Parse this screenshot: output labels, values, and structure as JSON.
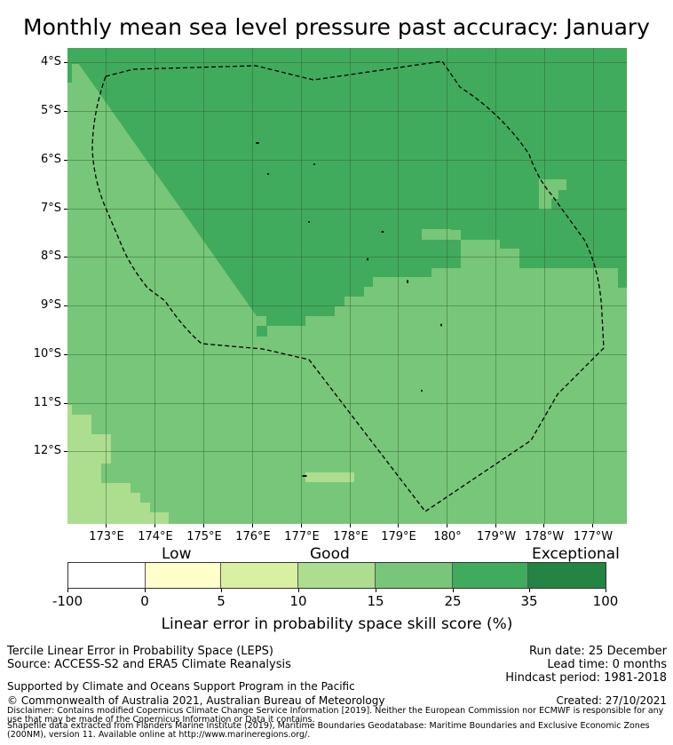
{
  "title": "Monthly mean sea level pressure past accuracy: January",
  "map": {
    "lat_labels": [
      "4°S",
      "5°S",
      "6°S",
      "7°S",
      "8°S",
      "9°S",
      "10°S",
      "11°S",
      "12°S"
    ],
    "lon_labels": [
      "173°E",
      "174°E",
      "175°E",
      "176°E",
      "177°E",
      "178°E",
      "179°E",
      "180°",
      "179°W",
      "178°W",
      "177°W"
    ],
    "colors": {
      "c25": "#78c679",
      "c35": "#41ab5d",
      "c15": "#addd8e",
      "outline": "#000000"
    }
  },
  "legend": {
    "categories": [
      "Low",
      "Good",
      "Exceptional"
    ],
    "ticks": [
      "-100",
      "0",
      "5",
      "10",
      "15",
      "25",
      "35",
      "100"
    ],
    "colors": [
      "#ffffff",
      "#ffffcc",
      "#d9f0a3",
      "#addd8e",
      "#78c679",
      "#41ab5d",
      "#238443"
    ],
    "label": "Linear error in probability space skill score (%)"
  },
  "footer": {
    "line1": "Tercile Linear Error in Probability Space (LEPS)",
    "line2": "Source: ACCESS-S2 and ERA5 Climate Reanalysis",
    "run_date": "Run date: 25 December",
    "lead_time": "Lead time: 0 months",
    "hindcast": "Hindcast period: 1981-2018",
    "support": "Supported by Climate and Oceans Support Program in the Pacific",
    "copyright": "© Commonwealth of Australia 2021, Australian Bureau of Meteorology",
    "created": "Created: 27/10/2021",
    "disclaimer": "Disclaimer: Contains modified Copernicus Climate Change Service Information [2019]. Neither the European Commission nor ECMWF is responsible for any use that may be made of the Copernicus Information or Data it contains.",
    "shapefile": "Shapefile data extracted from Flanders Marine Institute (2019), Maritime Boundaries Geodatabase: Maritime Boundaries and Exclusive Economic Zones (200NM), version 11. Available online at http://www.marineregions.org/."
  }
}
